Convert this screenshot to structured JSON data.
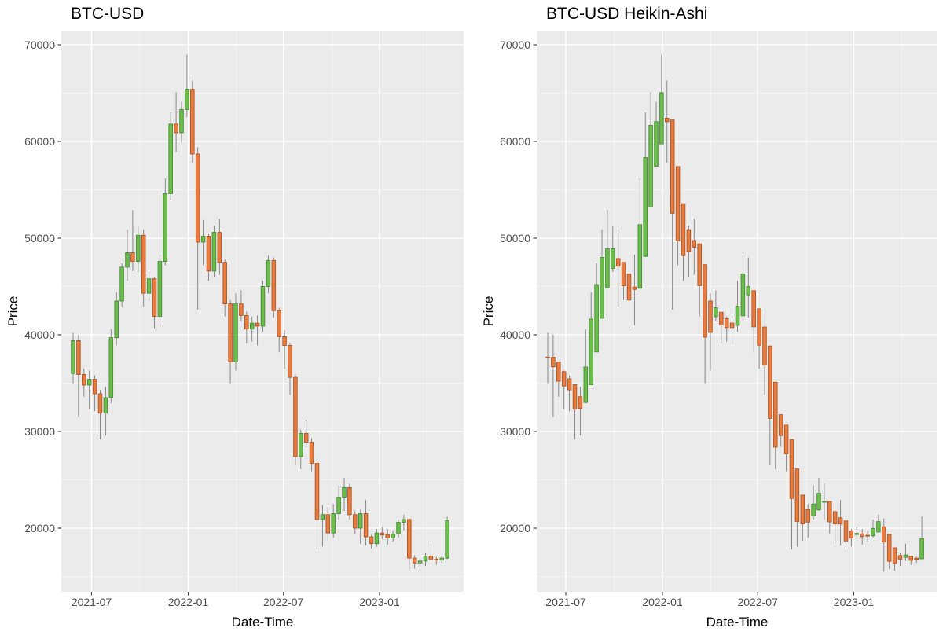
{
  "charts": [
    {
      "title": "BTC-USD",
      "x_axis_label": "Date-Time",
      "y_axis_label": "Price",
      "x_tick_labels": [
        "2021-07",
        "2022-01",
        "2022-07",
        "2023-01"
      ],
      "y_tick_labels": [
        "70000",
        "60000",
        "50000",
        "40000",
        "30000",
        "20000"
      ],
      "series_type": "candlestick"
    },
    {
      "title": "BTC-USD Heikin-Ashi",
      "x_axis_label": "Date-Time",
      "y_axis_label": "Price",
      "x_tick_labels": [
        "2021-07",
        "2022-01",
        "2022-07",
        "2023-01"
      ],
      "y_tick_labels": [
        "70000",
        "60000",
        "50000",
        "40000",
        "30000",
        "20000"
      ],
      "series_type": "heikin-ashi",
      "derived_from": "same OHLC series as left chart, Heikin-Ashi transformed"
    }
  ],
  "chart_data": {
    "type": "candlestick",
    "description": "Two-panel weekly-style BTC-USD candlestick chart; right panel is Heikin-Ashi transform of the same OHLC series. Values in USD, read from axis gridlines.",
    "y_axis_range_visible": [
      13900,
      71400
    ],
    "y_major_ticks": [
      70000,
      60000,
      50000,
      40000,
      30000,
      20000
    ],
    "x_major_ticks": [
      "2021-07",
      "2022-01",
      "2022-07",
      "2023-01"
    ],
    "grid": "major white + minor faint white on gray panel (ggplot theme_grey)",
    "legend": "none",
    "ohlc": [
      [
        36000,
        40200,
        35000,
        39400
      ],
      [
        39400,
        40000,
        31500,
        35900
      ],
      [
        35900,
        36500,
        33600,
        34800
      ],
      [
        34800,
        36300,
        32300,
        35400
      ],
      [
        35400,
        35800,
        32100,
        33900
      ],
      [
        33900,
        34300,
        29200,
        31900
      ],
      [
        31900,
        34600,
        29600,
        33500
      ],
      [
        33500,
        40600,
        32900,
        39700
      ],
      [
        39700,
        44400,
        38900,
        43500
      ],
      [
        43500,
        47400,
        42900,
        47000
      ],
      [
        47000,
        50900,
        45600,
        48500
      ],
      [
        48500,
        52900,
        46600,
        47600
      ],
      [
        47600,
        51200,
        46500,
        50300
      ],
      [
        50300,
        50900,
        42900,
        44300
      ],
      [
        44300,
        46600,
        43600,
        45800
      ],
      [
        45800,
        46000,
        40700,
        41900
      ],
      [
        41900,
        48300,
        41000,
        47600
      ],
      [
        47600,
        56200,
        47200,
        54600
      ],
      [
        54600,
        63000,
        53900,
        61800
      ],
      [
        61800,
        65100,
        58900,
        60900
      ],
      [
        60900,
        64100,
        59900,
        63300
      ],
      [
        63300,
        68990,
        62500,
        65400
      ],
      [
        65400,
        66300,
        57800,
        58700
      ],
      [
        58700,
        59400,
        42600,
        49600
      ],
      [
        49600,
        51900,
        47200,
        50200
      ],
      [
        50200,
        50400,
        45600,
        46600
      ],
      [
        46600,
        51300,
        46000,
        50600
      ],
      [
        50600,
        52000,
        46200,
        47500
      ],
      [
        47500,
        47800,
        41900,
        43200
      ],
      [
        43200,
        43600,
        35000,
        37200
      ],
      [
        37200,
        44300,
        36300,
        43200
      ],
      [
        43200,
        44600,
        41400,
        42000
      ],
      [
        42000,
        42400,
        39100,
        40600
      ],
      [
        40600,
        41900,
        39300,
        41200
      ],
      [
        41200,
        42000,
        38900,
        40900
      ],
      [
        40900,
        45600,
        40300,
        45000
      ],
      [
        45000,
        48200,
        44300,
        47700
      ],
      [
        47700,
        48000,
        41800,
        42500
      ],
      [
        42500,
        42800,
        38200,
        39800
      ],
      [
        39800,
        40500,
        36500,
        38900
      ],
      [
        38900,
        39200,
        33800,
        35600
      ],
      [
        35600,
        35900,
        26500,
        27400
      ],
      [
        27400,
        30200,
        26100,
        29800
      ],
      [
        29800,
        31200,
        28400,
        28900
      ],
      [
        28900,
        29300,
        25900,
        26700
      ],
      [
        26700,
        26900,
        17800,
        20900
      ],
      [
        20900,
        22400,
        18100,
        21400
      ],
      [
        21400,
        22200,
        18700,
        19500
      ],
      [
        19500,
        22500,
        19000,
        21500
      ],
      [
        21500,
        24400,
        20900,
        23200
      ],
      [
        23200,
        25200,
        21800,
        24200
      ],
      [
        24200,
        24600,
        20900,
        21400
      ],
      [
        21400,
        21800,
        19400,
        20000
      ],
      [
        20000,
        21900,
        18400,
        21500
      ],
      [
        21500,
        22900,
        18200,
        19100
      ],
      [
        19100,
        19300,
        17900,
        18400
      ],
      [
        18400,
        19900,
        18100,
        19500
      ],
      [
        19500,
        20100,
        18900,
        19300
      ],
      [
        19300,
        19900,
        18300,
        19000
      ],
      [
        19000,
        19700,
        18600,
        19400
      ],
      [
        19400,
        20900,
        19000,
        20600
      ],
      [
        20600,
        21400,
        19800,
        20900
      ],
      [
        20900,
        21000,
        15500,
        16900
      ],
      [
        16900,
        17200,
        15800,
        16400
      ],
      [
        16400,
        16800,
        15600,
        16600
      ],
      [
        16600,
        17400,
        16100,
        17100
      ],
      [
        17100,
        18400,
        16600,
        16800
      ],
      [
        16800,
        17000,
        16200,
        16700
      ],
      [
        16700,
        17100,
        16400,
        16900
      ],
      [
        16900,
        21200,
        16800,
        20800
      ]
    ],
    "colors": {
      "up_fill": "#6CBE4B",
      "up_stroke": "#468936",
      "down_fill": "#E87B3F",
      "down_stroke": "#AD5423",
      "wick": "#7E7E7E",
      "panel_background": "#EBEBEB",
      "grid_major": "#FFFFFF",
      "grid_minor": "#F5F5F5",
      "tick_text": "#4D4D4D",
      "axis_tick_mark": "#333333"
    }
  }
}
